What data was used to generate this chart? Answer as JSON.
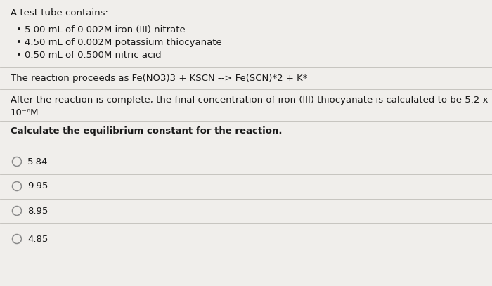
{
  "bg_color": "#d8d5d0",
  "content_bg": "#f0eeeb",
  "title_line": "A test tube contains:",
  "bullets": [
    "5.00 mL of 0.002M iron (III) nitrate",
    "4.50 mL of 0.002M potassium thiocyanate",
    "0.50 mL of 0.500M nitric acid"
  ],
  "reaction_line": "The reaction proceeds as Fe(NO3)3 + KSCN --> Fe(SCN)*2 + K*",
  "after_line1": "After the reaction is complete, the final concentration of iron (III) thiocyanate is calculated to be 5.2 x",
  "after_line2": "10⁻⁶M.",
  "question_line": "Calculate the equilibrium constant for the reaction.",
  "options": [
    "5.84",
    "9.95",
    "8.95",
    "4.85"
  ],
  "divider_color": "#c0bdb8",
  "text_color": "#1a1a1a",
  "circle_color": "#888888"
}
